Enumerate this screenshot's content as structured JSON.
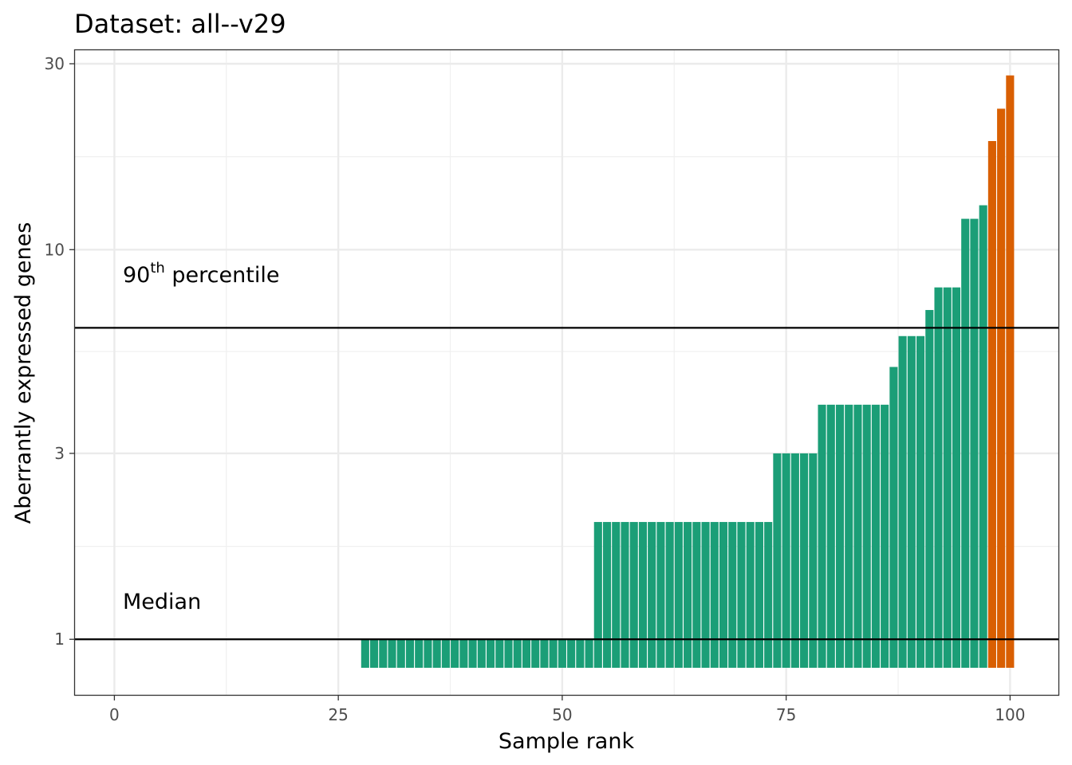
{
  "chart_data": {
    "type": "bar",
    "title": "Dataset: all--v29",
    "xlabel": "Sample rank",
    "ylabel": "Aberrantly expressed genes",
    "y_scale": "log10",
    "xlim": [
      -4.4,
      105.4
    ],
    "ylim": [
      0.72,
      32.5
    ],
    "x_ticks": [
      0,
      25,
      50,
      75,
      100
    ],
    "x_tick_labels": [
      "0",
      "25",
      "50",
      "75",
      "100"
    ],
    "y_ticks": [
      1,
      3,
      10,
      30
    ],
    "y_tick_labels": [
      "1",
      "3",
      "10",
      "30"
    ],
    "bar_base": 0.72,
    "grid": true,
    "colors": {
      "normal": "#1b9e77",
      "outlier": "#d95f02"
    },
    "x": [
      28,
      29,
      30,
      31,
      32,
      33,
      34,
      35,
      36,
      37,
      38,
      39,
      40,
      41,
      42,
      43,
      44,
      45,
      46,
      47,
      48,
      49,
      50,
      51,
      52,
      53,
      54,
      55,
      56,
      57,
      58,
      59,
      60,
      61,
      62,
      63,
      64,
      65,
      66,
      67,
      68,
      69,
      70,
      71,
      72,
      73,
      74,
      75,
      76,
      77,
      78,
      79,
      80,
      81,
      82,
      83,
      84,
      85,
      86,
      87,
      88,
      89,
      90,
      91,
      92,
      93,
      94,
      95,
      96,
      97,
      98,
      99,
      100
    ],
    "values": [
      1,
      1,
      1,
      1,
      1,
      1,
      1,
      1,
      1,
      1,
      1,
      1,
      1,
      1,
      1,
      1,
      1,
      1,
      1,
      1,
      1,
      1,
      1,
      1,
      1,
      1,
      2,
      2,
      2,
      2,
      2,
      2,
      2,
      2,
      2,
      2,
      2,
      2,
      2,
      2,
      2,
      2,
      2,
      2,
      2,
      2,
      3,
      3,
      3,
      3,
      3,
      4,
      4,
      4,
      4,
      4,
      4,
      4,
      4,
      5,
      6,
      6,
      6,
      7,
      8,
      8,
      8,
      12,
      12,
      13,
      19,
      23,
      28
    ],
    "outlier": [
      false,
      false,
      false,
      false,
      false,
      false,
      false,
      false,
      false,
      false,
      false,
      false,
      false,
      false,
      false,
      false,
      false,
      false,
      false,
      false,
      false,
      false,
      false,
      false,
      false,
      false,
      false,
      false,
      false,
      false,
      false,
      false,
      false,
      false,
      false,
      false,
      false,
      false,
      false,
      false,
      false,
      false,
      false,
      false,
      false,
      false,
      false,
      false,
      false,
      false,
      false,
      false,
      false,
      false,
      false,
      false,
      false,
      false,
      false,
      false,
      false,
      false,
      false,
      false,
      false,
      false,
      false,
      false,
      false,
      false,
      true,
      true,
      true
    ],
    "hlines": [
      {
        "name": "median",
        "y": 1,
        "label": "Median"
      },
      {
        "name": "p90",
        "y": 6.3,
        "label_base": "90",
        "label_sup": "th",
        "label_rest": " percentile"
      }
    ]
  }
}
